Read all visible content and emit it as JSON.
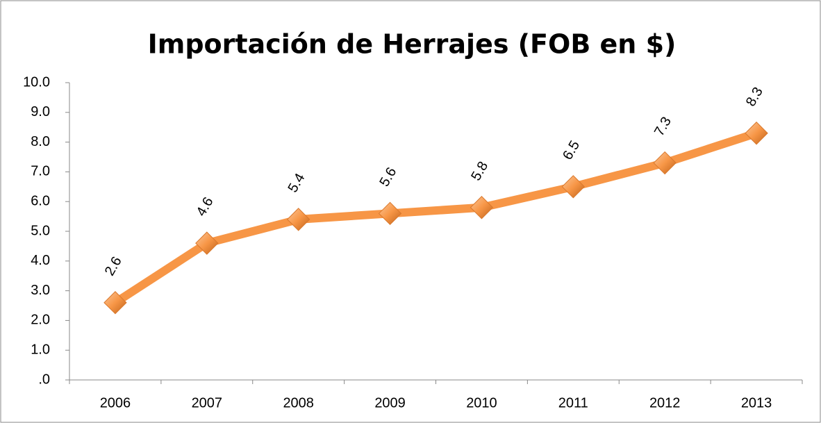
{
  "chart_data": {
    "type": "line",
    "title": "Importación de  Herrajes (FOB en $)",
    "categories": [
      "2006",
      "2007",
      "2008",
      "2009",
      "2010",
      "2011",
      "2012",
      "2013"
    ],
    "series": [
      {
        "name": "Importación de  Herrajes (FOB en $)",
        "color": "#f79646",
        "values": [
          2.6,
          4.6,
          5.4,
          5.6,
          5.8,
          6.5,
          7.3,
          8.3
        ]
      }
    ],
    "ylim": [
      0,
      10
    ],
    "yticks": [
      {
        "value": 0,
        "label": ".0"
      },
      {
        "value": 1,
        "label": "1.0"
      },
      {
        "value": 2,
        "label": "2.0"
      },
      {
        "value": 3,
        "label": "3.0"
      },
      {
        "value": 4,
        "label": "4.0"
      },
      {
        "value": 5,
        "label": "5.0"
      },
      {
        "value": 6,
        "label": "6.0"
      },
      {
        "value": 7,
        "label": "7.0"
      },
      {
        "value": 8,
        "label": "8.0"
      },
      {
        "value": 9,
        "label": "9.0"
      },
      {
        "value": 10,
        "label": "10.0"
      }
    ],
    "grid": false,
    "legend": false
  }
}
